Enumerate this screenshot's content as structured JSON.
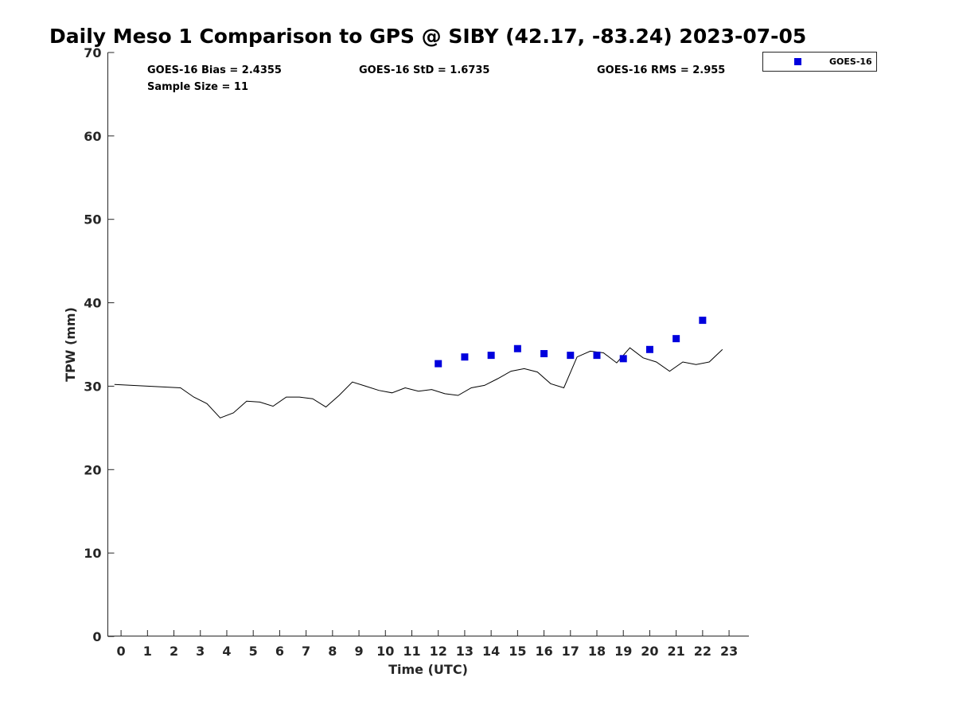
{
  "chart_data": {
    "type": "line",
    "title": "Daily Meso 1 Comparison to GPS @ SIBY (42.17, -83.24) 2023-07-05",
    "xlabel": "Time (UTC)",
    "ylabel": "TPW (mm)",
    "xlim": [
      -0.5,
      23.75
    ],
    "ylim": [
      0,
      70
    ],
    "x_ticks": [
      "0",
      "1",
      "2",
      "3",
      "4",
      "5",
      "6",
      "7",
      "8",
      "9",
      "10",
      "11",
      "12",
      "13",
      "14",
      "15",
      "16",
      "17",
      "18",
      "19",
      "20",
      "21",
      "22",
      "23"
    ],
    "y_ticks": [
      "0",
      "10",
      "20",
      "30",
      "40",
      "50",
      "60",
      "70"
    ],
    "grid": false,
    "legend_position": "outside-top-right",
    "stats": {
      "bias": "GOES-16 Bias = 2.4355",
      "std": "GOES-16 StD = 1.6735",
      "rms": "GOES-16 RMS = 2.955",
      "sample": "Sample Size = 11"
    },
    "series": [
      {
        "style": "line",
        "color": "#000000",
        "x": [
          -0.25,
          2.25,
          2.75,
          3.25,
          3.75,
          4.25,
          4.75,
          5.25,
          5.75,
          6.25,
          6.75,
          7.25,
          7.75,
          8.25,
          8.75,
          9.25,
          9.75,
          10.25,
          10.75,
          11.25,
          11.75,
          12.25,
          12.75,
          13.25,
          13.75,
          14.25,
          14.75,
          15.25,
          15.75,
          16.25,
          16.75,
          17.25,
          17.75,
          18.25,
          18.75,
          19.25,
          19.75,
          20.25,
          20.75,
          21.25,
          21.75,
          22.25,
          22.75
        ],
        "values": [
          30.2,
          29.8,
          28.7,
          27.9,
          26.2,
          26.8,
          28.2,
          28.1,
          27.6,
          28.7,
          28.7,
          28.5,
          27.5,
          28.9,
          30.5,
          30.0,
          29.5,
          29.2,
          29.8,
          29.4,
          29.6,
          29.1,
          28.9,
          29.8,
          30.1,
          30.9,
          31.8,
          32.1,
          31.7,
          30.3,
          29.8,
          33.5,
          34.2,
          34.0,
          32.8,
          34.6,
          33.4,
          32.9,
          31.8,
          32.9,
          32.6,
          32.9,
          34.4
        ]
      },
      {
        "name": "GOES-16",
        "style": "square-marker",
        "color": "#0000dd",
        "x": [
          12,
          13,
          14,
          15,
          16,
          17,
          18,
          19,
          20,
          21,
          22
        ],
        "values": [
          32.7,
          33.5,
          33.7,
          34.5,
          33.9,
          33.7,
          33.7,
          33.3,
          34.4,
          35.7,
          37.9
        ]
      }
    ]
  }
}
